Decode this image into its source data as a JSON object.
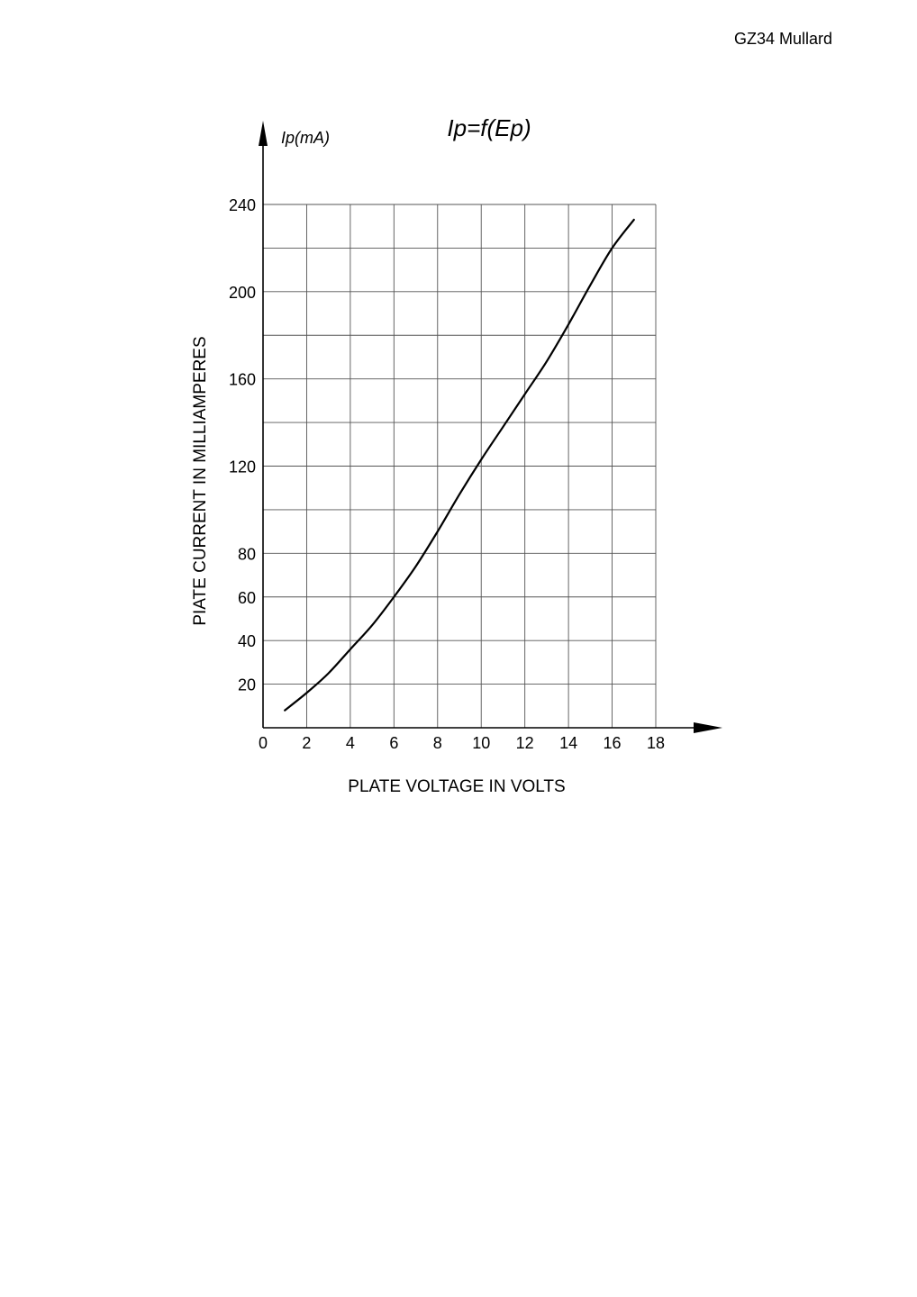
{
  "page": {
    "header": "GZ34 Mullard"
  },
  "chart_data": {
    "type": "line",
    "title": "Ip=f(Ep)",
    "ylabel": "PIATE CURRENT IN MILLIAMPERES",
    "xlabel": "PLATE VOLTAGE IN VOLTS",
    "y_unit_label": "Ip(mA)",
    "xlim": [
      0,
      18
    ],
    "ylim": [
      0,
      240
    ],
    "x_ticks": [
      0,
      2,
      4,
      6,
      8,
      10,
      12,
      14,
      16,
      18
    ],
    "y_ticks": [
      20,
      40,
      60,
      80,
      120,
      160,
      200,
      240
    ],
    "grid": true,
    "colors": {
      "line": "#000000",
      "grid": "#555555",
      "axis": "#000000"
    },
    "series": [
      {
        "x": [
          1,
          2,
          3,
          4,
          5,
          6,
          7,
          8,
          9,
          10,
          11,
          12,
          13,
          14,
          15,
          16,
          17
        ],
        "y": [
          8,
          16,
          25,
          36,
          47,
          60,
          74,
          90,
          107,
          123,
          138,
          153,
          168,
          185,
          203,
          220,
          233
        ]
      }
    ]
  }
}
